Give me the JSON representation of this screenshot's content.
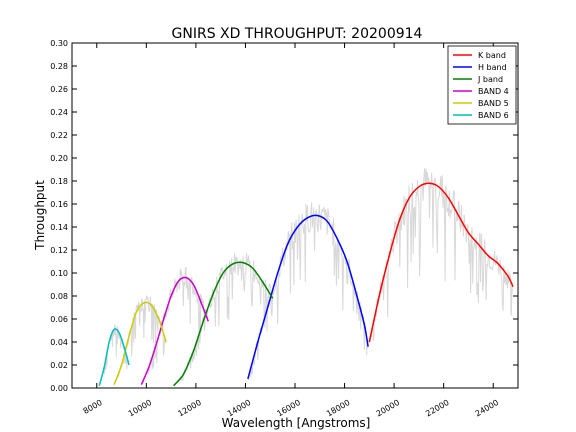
{
  "chart_data": {
    "type": "line",
    "title": "GNIRS XD THROUGHPUT:  20200914",
    "xlabel": "Wavelength [Angstroms]",
    "ylabel": "Throughput",
    "xlim": [
      7000,
      25000
    ],
    "ylim": [
      0,
      0.3
    ],
    "xticks": [
      8000,
      10000,
      12000,
      14000,
      16000,
      18000,
      20000,
      22000,
      24000
    ],
    "yticks": [
      0.0,
      0.02,
      0.04,
      0.06,
      0.08,
      0.1,
      0.12,
      0.14,
      0.16,
      0.18,
      0.2,
      0.22,
      0.24,
      0.26,
      0.28,
      0.3
    ],
    "grid": false,
    "legend_position": "top-right",
    "background_color": "#d8d8d8",
    "series": [
      {
        "name": "K band",
        "color": "#ff0000",
        "x": [
          19000,
          19400,
          19800,
          20200,
          20600,
          21000,
          21400,
          21800,
          22200,
          22600,
          23000,
          23400,
          23800,
          24200,
          24600,
          24800
        ],
        "y": [
          0.04,
          0.08,
          0.115,
          0.145,
          0.165,
          0.175,
          0.178,
          0.175,
          0.165,
          0.15,
          0.135,
          0.125,
          0.115,
          0.108,
          0.097,
          0.088
        ]
      },
      {
        "name": "H band",
        "color": "#0000ff",
        "x": [
          14100,
          14500,
          14900,
          15300,
          15700,
          16100,
          16500,
          16900,
          17300,
          17700,
          18100,
          18500,
          18800,
          18950
        ],
        "y": [
          0.008,
          0.04,
          0.07,
          0.1,
          0.125,
          0.14,
          0.148,
          0.15,
          0.145,
          0.13,
          0.11,
          0.08,
          0.055,
          0.036
        ]
      },
      {
        "name": "J band",
        "color": "#008000",
        "x": [
          11100,
          11500,
          11900,
          12300,
          12700,
          13100,
          13500,
          13900,
          14300,
          14700,
          15100
        ],
        "y": [
          0.002,
          0.012,
          0.032,
          0.058,
          0.082,
          0.1,
          0.108,
          0.109,
          0.104,
          0.092,
          0.078
        ]
      },
      {
        "name": "BAND 4",
        "color": "#cc00cc",
        "x": [
          9800,
          10100,
          10400,
          10700,
          11000,
          11300,
          11600,
          11900,
          12200,
          12500
        ],
        "y": [
          0.003,
          0.018,
          0.038,
          0.06,
          0.08,
          0.093,
          0.096,
          0.09,
          0.075,
          0.058
        ]
      },
      {
        "name": "BAND 5",
        "color": "#cccc00",
        "x": [
          8700,
          9000,
          9300,
          9600,
          9900,
          10200,
          10500,
          10800
        ],
        "y": [
          0.003,
          0.02,
          0.045,
          0.066,
          0.074,
          0.072,
          0.06,
          0.04
        ]
      },
      {
        "name": "BAND 6",
        "color": "#00bfbf",
        "x": [
          8100,
          8300,
          8500,
          8700,
          8900,
          9100,
          9300
        ],
        "y": [
          0.002,
          0.018,
          0.04,
          0.051,
          0.048,
          0.036,
          0.02
        ]
      }
    ]
  }
}
